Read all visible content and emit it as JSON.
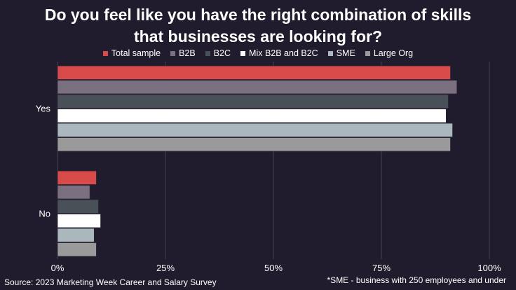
{
  "chart_data": {
    "type": "bar",
    "orientation": "horizontal",
    "title": "Do you feel like you have the right combination of skills that businesses are looking for?",
    "categories": [
      "Yes",
      "No"
    ],
    "series": [
      {
        "name": "Total sample",
        "color": "#d94a4a",
        "values": [
          91,
          9
        ]
      },
      {
        "name": "B2B",
        "color": "#7a7080",
        "values": [
          92.5,
          7.5
        ]
      },
      {
        "name": "B2C",
        "color": "#4a5058",
        "values": [
          90.5,
          9.5
        ]
      },
      {
        "name": "Mix B2B and B2C",
        "color": "#ffffff",
        "values": [
          90,
          10
        ]
      },
      {
        "name": "SME",
        "color": "#aab8bd",
        "values": [
          91.5,
          8.5
        ]
      },
      {
        "name": "Large Org",
        "color": "#9a9a9a",
        "values": [
          91,
          9
        ]
      }
    ],
    "xlim": [
      0,
      100
    ],
    "x_ticks": [
      "0%",
      "25%",
      "50%",
      "75%",
      "100%"
    ],
    "grid": true,
    "legend_position": "top"
  },
  "footer": {
    "source": "Source: 2023 Marketing Week Career and Salary Survey",
    "note": "*SME - business with 250 employees and under"
  }
}
